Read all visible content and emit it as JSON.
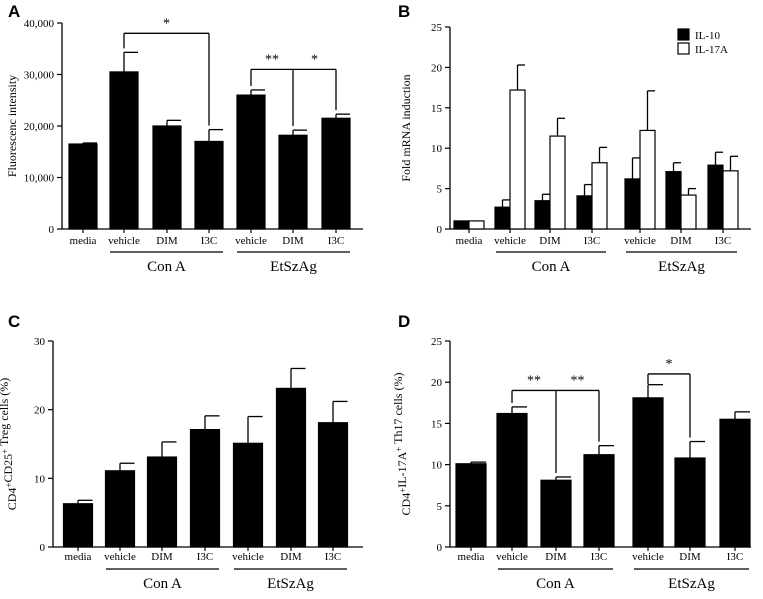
{
  "figure": {
    "panel_count": 4
  },
  "colors": {
    "bar_fill": "#000000",
    "open_fill": "#ffffff",
    "axis": "#000000",
    "background": "#ffffff"
  },
  "chart_data": [
    {
      "panel": "A",
      "type": "bar",
      "categories": [
        "media",
        "vehicle",
        "DIM",
        "I3C",
        "vehicle",
        "DIM",
        "I3C"
      ],
      "series": [
        {
          "name": "Fluorescenc intensity",
          "values": [
            16500,
            30500,
            20000,
            17000,
            26000,
            18200,
            21500
          ],
          "errors": [
            200,
            3800,
            1100,
            2300,
            1000,
            1000,
            800
          ],
          "fill": "#000000"
        }
      ],
      "ylabel": "Fluorescenc intensity",
      "ylim": [
        0,
        40000
      ],
      "yticks": [
        0,
        10000,
        20000,
        30000,
        40000
      ],
      "ytick_labels": [
        "0",
        "10,000",
        "20,000",
        "30,000",
        "40,000"
      ],
      "groups": [
        {
          "label": "Con A",
          "from": 1,
          "to": 3
        },
        {
          "label": "EtSzAg",
          "from": 4,
          "to": 6
        }
      ],
      "significance": [
        {
          "label": "*",
          "from": 1,
          "to": [
            3
          ],
          "bracket_y": 38000
        },
        {
          "label": "**",
          "from": 4,
          "to": [
            5,
            6
          ],
          "bracket_y": 31000
        },
        {
          "label": "*",
          "from": 5,
          "to": [
            6
          ],
          "bracket_y": 31000,
          "label_only": true
        }
      ]
    },
    {
      "panel": "B",
      "type": "bar",
      "categories": [
        "media",
        "vehicle",
        "DIM",
        "I3C",
        "vehicle",
        "DIM",
        "I3C"
      ],
      "series": [
        {
          "name": "IL-10",
          "values": [
            1,
            2.7,
            3.5,
            4.1,
            6.2,
            7.1,
            7.9
          ],
          "errors": [
            0,
            0.9,
            0.8,
            1.4,
            2.6,
            1.1,
            1.6
          ],
          "fill": "#000000"
        },
        {
          "name": "IL-17A",
          "values": [
            1,
            17.2,
            11.5,
            8.2,
            12.2,
            4.2,
            7.2
          ],
          "errors": [
            0,
            3.1,
            2.2,
            1.9,
            4.9,
            0.8,
            1.8
          ],
          "fill": "#ffffff"
        }
      ],
      "ylabel": "Fold mRNA induction",
      "ylim": [
        0,
        25
      ],
      "yticks": [
        0,
        5,
        10,
        15,
        20,
        25
      ],
      "ytick_labels": [
        "0",
        "5",
        "10",
        "15",
        "20",
        "25"
      ],
      "groups": [
        {
          "label": "Con A",
          "from": 1,
          "to": 3
        },
        {
          "label": "EtSzAg",
          "from": 4,
          "to": 6
        }
      ],
      "legend": {
        "position": "top-right",
        "entries": [
          "IL-10",
          "IL-17A"
        ]
      },
      "significance": []
    },
    {
      "panel": "C",
      "type": "bar",
      "categories": [
        "media",
        "vehicle",
        "DIM",
        "I3C",
        "vehicle",
        "DIM",
        "I3C"
      ],
      "series": [
        {
          "name": "Treg cells",
          "values": [
            6.3,
            11.1,
            13.1,
            17.1,
            15.1,
            23.1,
            18.1
          ],
          "errors": [
            0.5,
            1.1,
            2.2,
            2.0,
            3.9,
            2.9,
            3.1
          ],
          "fill": "#000000"
        }
      ],
      "ylabel": "CD4⁺CD25⁺ Treg cells (%)",
      "ylim": [
        0,
        30
      ],
      "yticks": [
        0,
        10,
        20,
        30
      ],
      "ytick_labels": [
        "0",
        "10",
        "20",
        "30"
      ],
      "groups": [
        {
          "label": "Con A",
          "from": 1,
          "to": 3
        },
        {
          "label": "EtSzAg",
          "from": 4,
          "to": 6
        }
      ],
      "significance": []
    },
    {
      "panel": "D",
      "type": "bar",
      "categories": [
        "media",
        "vehicle",
        "DIM",
        "I3C",
        "vehicle",
        "DIM",
        "I3C"
      ],
      "series": [
        {
          "name": "Th17 cells",
          "values": [
            10.1,
            16.2,
            8.1,
            11.2,
            18.1,
            10.8,
            15.5
          ],
          "errors": [
            0.2,
            0.8,
            0.4,
            1.1,
            1.6,
            2.0,
            0.9
          ],
          "fill": "#000000"
        }
      ],
      "ylabel": "CD4⁺IL-17A⁺ Th17 cells (%)",
      "ylim": [
        0,
        25
      ],
      "yticks": [
        0,
        5,
        10,
        15,
        20,
        25
      ],
      "ytick_labels": [
        "0",
        "5",
        "10",
        "15",
        "20",
        "25"
      ],
      "groups": [
        {
          "label": "Con A",
          "from": 1,
          "to": 3
        },
        {
          "label": "EtSzAg",
          "from": 4,
          "to": 6
        }
      ],
      "significance": [
        {
          "label": "**",
          "from": 1,
          "to": [
            2,
            3
          ],
          "bracket_y": 19
        },
        {
          "label": "**",
          "from": 2,
          "to": [
            3
          ],
          "bracket_y": 19,
          "label_only": true
        },
        {
          "label": "*",
          "from": 4,
          "to": [
            5
          ],
          "bracket_y": 21
        }
      ]
    }
  ]
}
